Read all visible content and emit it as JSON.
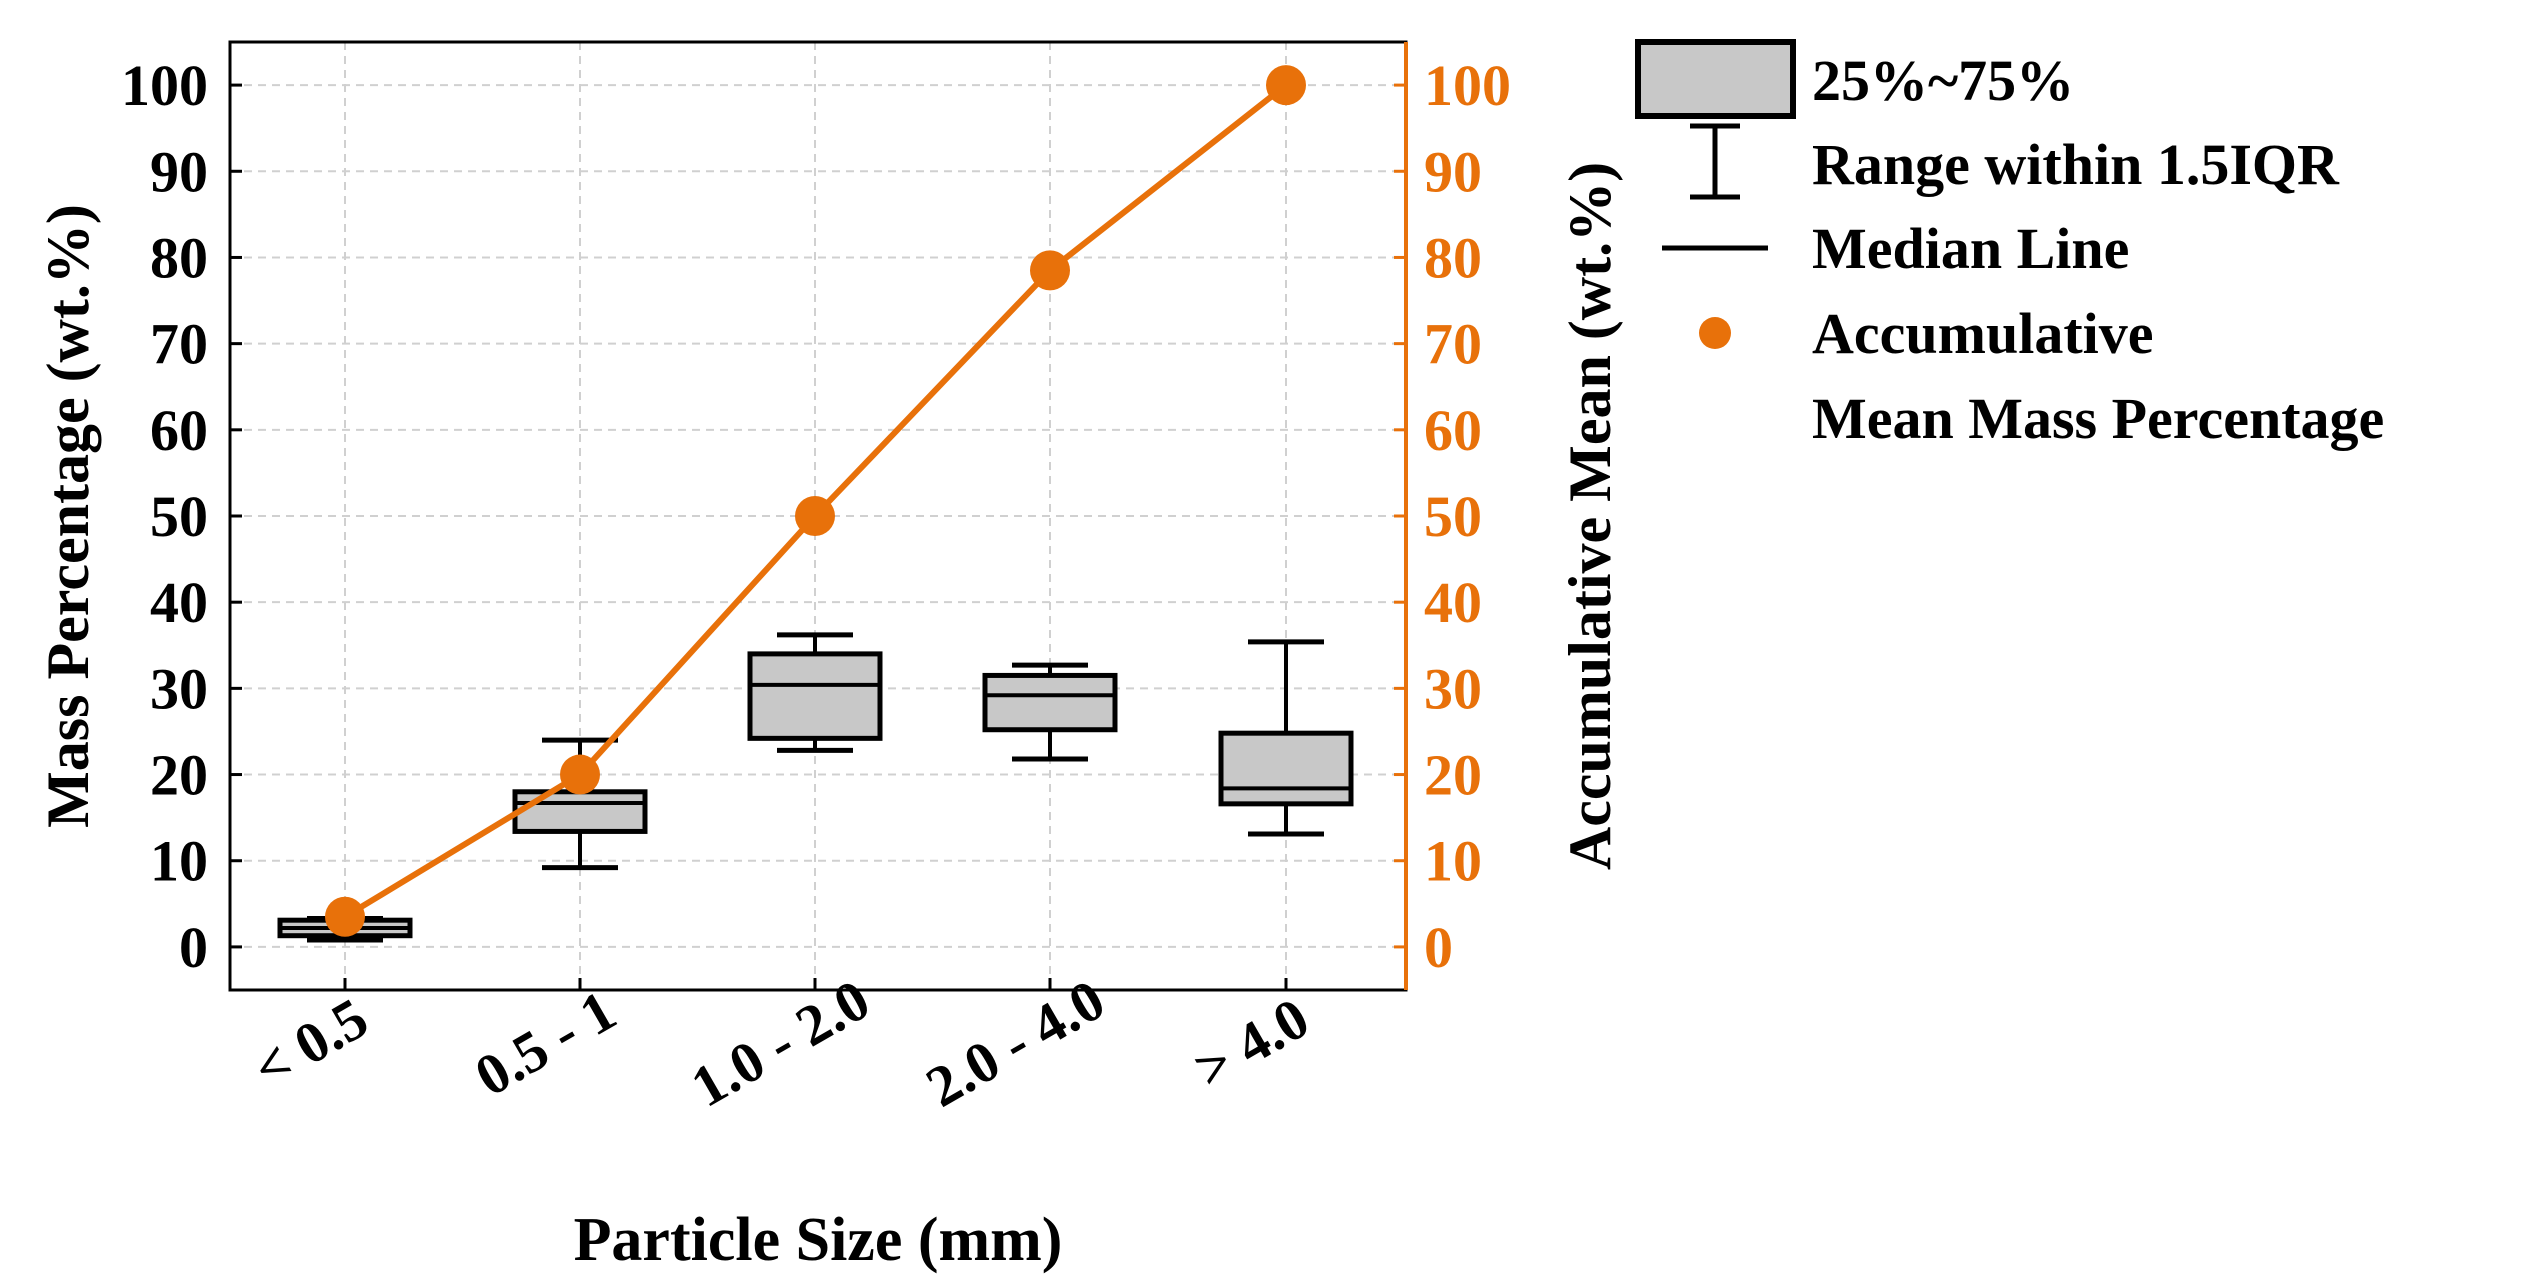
{
  "chart_data": {
    "type": "box",
    "categories": [
      "< 0.5",
      "0.5 - 1",
      "1.0 - 2.0",
      "2.0 - 4.0",
      "> 4.0"
    ],
    "boxes": [
      {
        "category": "< 0.5",
        "whisker_low": 0.8,
        "q1": 1.3,
        "median": 2.2,
        "q3": 3.1,
        "whisker_high": 3.3
      },
      {
        "category": "0.5 - 1",
        "whisker_low": 9.2,
        "q1": 13.4,
        "median": 16.7,
        "q3": 18.0,
        "whisker_high": 24.0
      },
      {
        "category": "1.0 - 2.0",
        "whisker_low": 22.8,
        "q1": 24.2,
        "median": 30.4,
        "q3": 34.0,
        "whisker_high": 36.2
      },
      {
        "category": "2.0 - 4.0",
        "whisker_low": 21.8,
        "q1": 25.2,
        "median": 29.2,
        "q3": 31.5,
        "whisker_high": 32.7
      },
      {
        "category": "> 4.0",
        "whisker_low": 13.1,
        "q1": 16.6,
        "median": 18.4,
        "q3": 24.8,
        "whisker_high": 35.4
      }
    ],
    "cumulative": {
      "name": "Accumulative Mean Mass Percentage",
      "values": [
        3.5,
        20.0,
        50.0,
        78.5,
        100.0
      ]
    },
    "xlabel": "Particle Size (mm)",
    "ylabel_left": "Mass Percentage (wt.%)",
    "ylabel_right": "Accumulative Mean (wt.%)",
    "ylim": [
      -5,
      105
    ],
    "yticks": [
      0,
      10,
      20,
      30,
      40,
      50,
      60,
      70,
      80,
      90,
      100
    ],
    "grid": true,
    "legend_position": "outside-right",
    "legend": {
      "box": "25%~75%",
      "whisker": "Range within 1.5IQR",
      "median": "Median Line",
      "cumulative_line1": "Accumulative",
      "cumulative_line2": "Mean Mass Percentage"
    },
    "colors": {
      "box_fill": "#c8c8c8",
      "box_stroke": "#000000",
      "cumulative": "#e8710a",
      "grid": "#d0d0d0",
      "axis_left": "#000000",
      "axis_right": "#e8710a"
    }
  }
}
